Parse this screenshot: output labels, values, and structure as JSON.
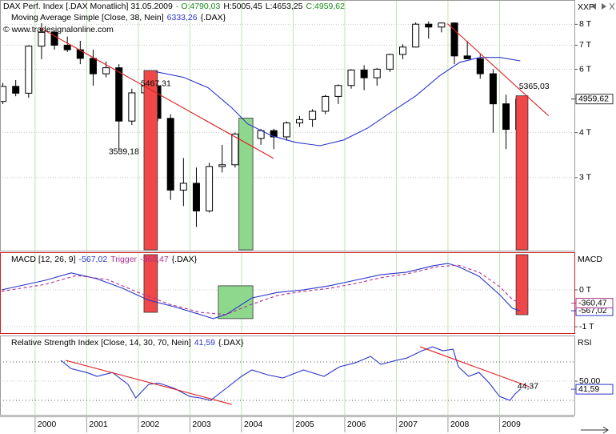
{
  "chart_data": [
    {
      "type": "candlestick",
      "header": [
        {
          "text": "DAX Perf. Index [.DAX  Monatlich] 31.05.2009",
          "color": "#000000"
        },
        {
          "text": "- O:4790,03",
          "color": "#1a8a1a"
        },
        {
          "text": "H:5005,45",
          "color": "#000000"
        },
        {
          "text": "L:4653,25",
          "color": "#000000"
        },
        {
          "text": "C:4959,62",
          "color": "#1a8a1a"
        }
      ],
      "watermark": "© www.tradesignalonline.com",
      "axis_title": "XXP",
      "source": "{.DAX}",
      "log_scale": true,
      "xlim": [
        1999.32,
        2010.45
      ],
      "xticks": [
        2000,
        2001,
        2002,
        2003,
        2004,
        2005,
        2006,
        2007,
        2008,
        2009
      ],
      "ylim": [
        1890,
        8700
      ],
      "yticks": [
        {
          "value": 3000,
          "label": "3 T"
        },
        {
          "value": 4000,
          "label": "4 T"
        },
        {
          "value": 6000,
          "label": "6 T"
        },
        {
          "value": 7000,
          "label": "7 T"
        },
        {
          "value": 8000,
          "label": "8 T"
        }
      ],
      "up_color": "#ffffff",
      "down_color": "#000000",
      "x": [
        1999.375,
        1999.625,
        1999.875,
        2000.125,
        2000.375,
        2000.625,
        2000.875,
        2001.125,
        2001.375,
        2001.625,
        2001.875,
        2002.125,
        2002.375,
        2002.625,
        2002.875,
        2003.125,
        2003.375,
        2003.625,
        2003.875,
        2004.125,
        2004.375,
        2004.625,
        2004.875,
        2005.125,
        2005.375,
        2005.625,
        2005.875,
        2006.125,
        2006.375,
        2006.625,
        2006.875,
        2007.125,
        2007.375,
        2007.625,
        2007.875,
        2008.125,
        2008.375,
        2008.625,
        2008.875,
        2009.125,
        2009.375
      ],
      "open": [
        4884,
        5378,
        5149,
        6958,
        7599,
        7000,
        6798,
        6434,
        5829,
        6058,
        4308,
        5160,
        5397,
        4383,
        2770,
        2893,
        2424,
        3221,
        3257,
        3965,
        3856,
        4052,
        3893,
        4256,
        4349,
        4586,
        5044,
        5408,
        5970,
        5683,
        6004,
        6597,
        6917,
        8007,
        7862,
        8067,
        6535,
        6418,
        5831,
        4810,
        4085
      ],
      "high": [
        5500,
        5600,
        7000,
        8060,
        7700,
        7400,
        7200,
        6800,
        6300,
        6200,
        5300,
        5467.31,
        5450,
        4500,
        3400,
        3200,
        3300,
        3700,
        4000,
        4200,
        4100,
        4100,
        4300,
        4450,
        4650,
        5100,
        5450,
        6000,
        6160,
        6050,
        6630,
        7040,
        8100,
        8150,
        8100,
        8100,
        7200,
        6600,
        6000,
        5100,
        5005.45
      ],
      "low": [
        4800,
        5050,
        5000,
        6400,
        6800,
        6700,
        6200,
        5400,
        5700,
        3539.18,
        4200,
        4900,
        4300,
        2600,
        2500,
        2188,
        2400,
        3100,
        3200,
        3700,
        3700,
        3600,
        3800,
        4150,
        4150,
        4500,
        4800,
        5300,
        5250,
        5400,
        5900,
        6400,
        6900,
        7300,
        7600,
        6200,
        6400,
        5650,
        4000,
        3600,
        4000
      ],
      "close": [
        5378,
        5149,
        6958,
        7599,
        7000,
        6798,
        6434,
        5829,
        6058,
        4308,
        5160,
        5397,
        4383,
        2770,
        2893,
        2424,
        3221,
        3257,
        3965,
        3856,
        4052,
        3893,
        4256,
        4349,
        4586,
        5044,
        5408,
        5970,
        5683,
        6004,
        6597,
        6917,
        8007,
        7862,
        8067,
        6535,
        6418,
        5831,
        4810,
        4085,
        4959.62
      ],
      "close_label": "4959,62",
      "series": [
        {
          "name": "Moving Average Simple [Close, 38, Nein]",
          "color": "#2a35c8",
          "last_label": "6333,26",
          "x": [
            2002.34,
            2002.88,
            2003.35,
            2003.81,
            2004.12,
            2004.59,
            2005.05,
            2005.52,
            2005.98,
            2006.45,
            2006.91,
            2007.38,
            2007.84,
            2008.23,
            2008.62,
            2009.01,
            2009.4
          ],
          "values": [
            5906,
            5697,
            5335,
            4689,
            4231,
            3918,
            3758,
            3678,
            3818,
            4124,
            4572,
            5064,
            5756,
            6275,
            6472,
            6472,
            6333.26
          ]
        }
      ],
      "trendlines": [
        {
          "color": "#e02020",
          "x": [
            2000.09,
            2004.62
          ],
          "values": [
            7830,
            3393
          ]
        },
        {
          "color": "#e02020",
          "x": [
            2007.99,
            2009.95
          ],
          "values": [
            8030,
            4455
          ]
        }
      ],
      "annotations": [
        {
          "x": 2001.72,
          "value": 3539.18,
          "label": "3539,18",
          "color": "#3a3aa0"
        },
        {
          "x": 2002.34,
          "value": 5467.31,
          "label": "5467,31",
          "color": "#3a3aa0"
        },
        {
          "x": 2009.67,
          "value": 5365.03,
          "label": "5365,03",
          "color": "#e02020"
        }
      ],
      "highlights": [
        {
          "x": [
            2002.11,
            2002.37
          ],
          "y": [
            1890,
            5950
          ],
          "color": "#f04848"
        },
        {
          "x": [
            2003.95,
            2004.22
          ],
          "y": [
            1890,
            4391
          ],
          "color": "#8ed88e"
        },
        {
          "x": [
            2009.32,
            2009.55
          ],
          "y": [
            1890,
            5064
          ],
          "color": "#f04848"
        }
      ]
    },
    {
      "type": "line",
      "axis_title": "MACD",
      "source": "{.DAX}",
      "ylim": [
        -1174,
        956
      ],
      "yticks": [
        {
          "value": 0,
          "label": "0 T"
        },
        {
          "value": -1000,
          "label": "-1 T"
        }
      ],
      "series": [
        {
          "name": "MACD [12, 26, 9]",
          "color": "#2a35c8",
          "last_label": "-567,02",
          "x": [
            1999.35,
            2000.2,
            2000.7,
            2001.2,
            2001.7,
            2002.2,
            2002.7,
            2003.2,
            2003.45,
            2003.7,
            2004.2,
            2004.7,
            2005.2,
            2005.7,
            2006.2,
            2006.7,
            2007.2,
            2007.7,
            2008.0,
            2008.2,
            2008.6,
            2009.0,
            2009.25,
            2009.4
          ],
          "values": [
            0,
            260,
            460,
            300,
            40,
            -280,
            -460,
            -670,
            -780,
            -670,
            -220,
            -70,
            0,
            110,
            260,
            410,
            480,
            650,
            720,
            630,
            370,
            -130,
            -500,
            -567.02
          ]
        },
        {
          "name": "Trigger",
          "color": "#b03090",
          "dashed": true,
          "last_label": "-360,47",
          "x": [
            1999.35,
            2000.2,
            2000.8,
            2001.4,
            2002.0,
            2002.6,
            2003.2,
            2003.7,
            2004.2,
            2004.7,
            2005.2,
            2005.7,
            2006.2,
            2006.7,
            2007.2,
            2007.8,
            2008.2,
            2008.6,
            2009.0,
            2009.25,
            2009.4
          ],
          "values": [
            -40,
            150,
            390,
            280,
            -70,
            -390,
            -610,
            -670,
            -390,
            -150,
            -40,
            40,
            170,
            330,
            430,
            630,
            670,
            480,
            90,
            -260,
            -360.47
          ]
        }
      ],
      "highlights": [
        {
          "x": [
            2002.11,
            2002.37
          ],
          "y": [
            -610,
            956
          ],
          "color": "#f04848"
        },
        {
          "x": [
            2003.55,
            2004.22
          ],
          "y": [
            -780,
            110
          ],
          "color": "#8ed88e"
        },
        {
          "x": [
            2009.32,
            2009.55
          ],
          "y": [
            -675,
            956
          ],
          "color": "#f04848"
        }
      ]
    },
    {
      "type": "line",
      "axis_title": "RSI",
      "source": "{.DAX}",
      "ylim": [
        15,
        96.7
      ],
      "yticks": [
        {
          "value": 50,
          "label": "50,00"
        }
      ],
      "levels": [
        30,
        70
      ],
      "series": [
        {
          "name": "Relative Strength Index [Close, 14, 30, 70, Nein]",
          "color": "#2a35c8",
          "last_label": "41,59",
          "x": [
            2000.5,
            2000.7,
            2001.0,
            2001.2,
            2001.5,
            2001.8,
            2001.95,
            2002.2,
            2002.4,
            2002.7,
            2003.0,
            2003.2,
            2003.4,
            2003.7,
            2004.0,
            2004.2,
            2004.5,
            2004.8,
            2005.2,
            2005.6,
            2005.9,
            2006.2,
            2006.5,
            2006.7,
            2007.0,
            2007.2,
            2007.5,
            2007.7,
            2007.9,
            2008.1,
            2008.2,
            2008.4,
            2008.6,
            2008.8,
            2009.0,
            2009.2,
            2009.3,
            2009.4
          ],
          "values": [
            71.7,
            63,
            59,
            55,
            59,
            46.7,
            32.5,
            46.7,
            48,
            42.5,
            34,
            32.5,
            30,
            42.5,
            55,
            61.7,
            56.7,
            53.3,
            61.7,
            55,
            65,
            69,
            75.8,
            67.5,
            71.7,
            74,
            81.7,
            85.8,
            81.7,
            83.3,
            65,
            55,
            59,
            48,
            34,
            30,
            36.7,
            41.59
          ]
        }
      ],
      "trendlines": [
        {
          "color": "#e02020",
          "x": [
            2000.59,
            2003.81
          ],
          "values": [
            71.7,
            25.8
          ]
        },
        {
          "color": "#e02020",
          "x": [
            2007.46,
            2009.58
          ],
          "values": [
            85.8,
            44.2
          ]
        }
      ],
      "annotations": [
        {
          "x": 2009.55,
          "value": 44.37,
          "label": "44,37",
          "color": "#e02020"
        }
      ]
    }
  ]
}
